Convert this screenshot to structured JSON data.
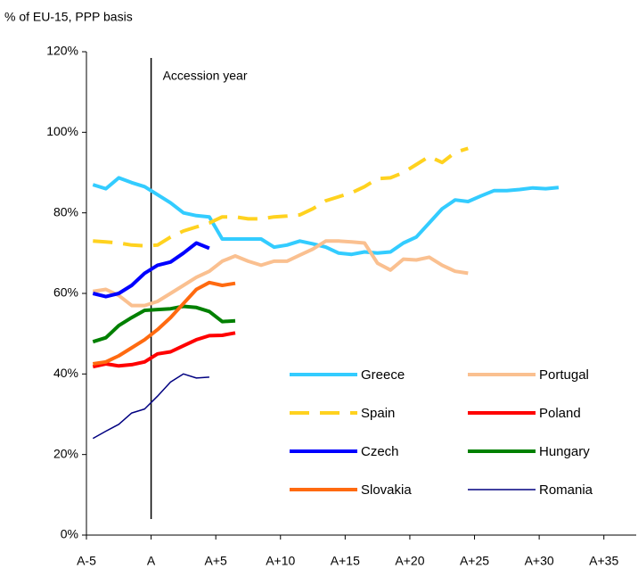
{
  "chart_data": {
    "type": "line",
    "y_axis_title": "% of EU-15, PPP basis",
    "annotation": {
      "text": "Accession year",
      "x": 0
    },
    "x": [
      -4.5,
      -3.5,
      -2.5,
      -1.5,
      -0.5,
      0.5,
      1.5,
      2.5,
      3.5,
      4.5,
      5.5,
      6.5,
      7.5,
      8.5,
      9.5,
      10.5,
      11.5,
      12.5,
      13.5,
      14.5,
      15.5,
      16.5,
      17.5,
      18.5,
      19.5,
      20.5,
      21.5,
      22.5,
      23.5,
      24.5,
      25.5,
      26.5,
      27.5,
      28.5,
      29.5,
      30.5,
      31.5
    ],
    "xlim": [
      -5,
      37.5
    ],
    "xticks": [
      {
        "value": -5,
        "label": "A-5"
      },
      {
        "value": 0,
        "label": "A"
      },
      {
        "value": 5,
        "label": "A+5"
      },
      {
        "value": 10,
        "label": "A+10"
      },
      {
        "value": 15,
        "label": "A+15"
      },
      {
        "value": 20,
        "label": "A+20"
      },
      {
        "value": 25,
        "label": "A+25"
      },
      {
        "value": 30,
        "label": "A+30"
      },
      {
        "value": 35,
        "label": "A+35"
      }
    ],
    "ylim": [
      0,
      120
    ],
    "yticks": [
      {
        "value": 0,
        "label": "0%"
      },
      {
        "value": 20,
        "label": "20%"
      },
      {
        "value": 40,
        "label": "40%"
      },
      {
        "value": 60,
        "label": "60%"
      },
      {
        "value": 80,
        "label": "80%"
      },
      {
        "value": 100,
        "label": "100%"
      },
      {
        "value": 120,
        "label": "120%"
      }
    ],
    "legend": "lower right",
    "series": [
      {
        "name": "Greece",
        "color": "#33CCFF",
        "width": 4,
        "linestyle": "solid",
        "values": [
          87,
          86,
          88.7,
          87.5,
          86.5,
          84.5,
          82.5,
          80,
          79.3,
          79,
          73.5,
          73.5,
          73.5,
          73.5,
          71.5,
          72,
          73,
          72.3,
          71.5,
          70,
          69.7,
          70.3,
          70,
          70.3,
          72.5,
          74,
          77.5,
          81,
          83.2,
          82.8,
          84.2,
          85.5,
          85.5,
          85.8,
          86.2,
          86,
          86.3
        ]
      },
      {
        "name": "Portugal",
        "color": "#FAC090",
        "width": 4,
        "linestyle": "solid",
        "values": [
          60.5,
          61,
          59.5,
          57,
          57,
          58,
          60,
          62,
          64,
          65.5,
          68,
          69.3,
          68,
          67,
          68,
          68,
          69.5,
          71,
          73,
          73,
          72.8,
          72.5,
          67.5,
          65.8,
          68.5,
          68.3,
          69,
          67,
          65.5,
          65,
          null,
          null,
          null,
          null,
          null,
          null,
          null
        ]
      },
      {
        "name": "Spain",
        "color": "#FFD21F",
        "width": 4,
        "linestyle": "dashed",
        "values": [
          73,
          72.8,
          72.5,
          72,
          71.8,
          72,
          74,
          75.5,
          76.5,
          77.5,
          79,
          79,
          78.5,
          78.5,
          79,
          79.2,
          79.5,
          81,
          83,
          84,
          85,
          86.5,
          88.5,
          88.7,
          90,
          92,
          94,
          92.5,
          95,
          96,
          null,
          null,
          null,
          null,
          null,
          null,
          null
        ]
      },
      {
        "name": "Poland",
        "color": "#FF0000",
        "width": 4,
        "linestyle": "solid",
        "values": [
          41.8,
          42.5,
          42,
          42.3,
          43,
          45,
          45.5,
          47,
          48.5,
          49.5,
          49.6,
          50.2,
          null,
          null,
          null,
          null,
          null,
          null,
          null,
          null,
          null,
          null,
          null,
          null,
          null,
          null,
          null,
          null,
          null,
          null,
          null,
          null,
          null,
          null,
          null,
          null,
          null
        ]
      },
      {
        "name": "Czech",
        "color": "#0000FF",
        "width": 4,
        "linestyle": "solid",
        "values": [
          60,
          59.2,
          60,
          62,
          65,
          67,
          67.8,
          70,
          72.5,
          71.2,
          null,
          null,
          null,
          null,
          null,
          null,
          null,
          null,
          null,
          null,
          null,
          null,
          null,
          null,
          null,
          null,
          null,
          null,
          null,
          null,
          null,
          null,
          null,
          null,
          null,
          null,
          null
        ]
      },
      {
        "name": "Hungary",
        "color": "#008000",
        "width": 4,
        "linestyle": "solid",
        "values": [
          48,
          49,
          52,
          54,
          55.8,
          56,
          56.2,
          56.8,
          56.5,
          55.5,
          53,
          53.2,
          null,
          null,
          null,
          null,
          null,
          null,
          null,
          null,
          null,
          null,
          null,
          null,
          null,
          null,
          null,
          null,
          null,
          null,
          null,
          null,
          null,
          null,
          null,
          null,
          null
        ]
      },
      {
        "name": "Slovakia",
        "color": "#FF6A10",
        "width": 4,
        "linestyle": "solid",
        "values": [
          42.5,
          43,
          44.5,
          46.5,
          48.5,
          51,
          54,
          57.5,
          61,
          62.7,
          62,
          62.5,
          null,
          null,
          null,
          null,
          null,
          null,
          null,
          null,
          null,
          null,
          null,
          null,
          null,
          null,
          null,
          null,
          null,
          null,
          null,
          null,
          null,
          null,
          null,
          null,
          null
        ]
      },
      {
        "name": "Romania",
        "color": "#000080",
        "width": 1.5,
        "linestyle": "solid",
        "values": [
          24,
          25.8,
          27.5,
          30.3,
          31.3,
          34.5,
          38,
          40,
          39,
          39.2,
          null,
          null,
          null,
          null,
          null,
          null,
          null,
          null,
          null,
          null,
          null,
          null,
          null,
          null,
          null,
          null,
          null,
          null,
          null,
          null,
          null,
          null,
          null,
          null,
          null,
          null,
          null
        ]
      }
    ]
  }
}
